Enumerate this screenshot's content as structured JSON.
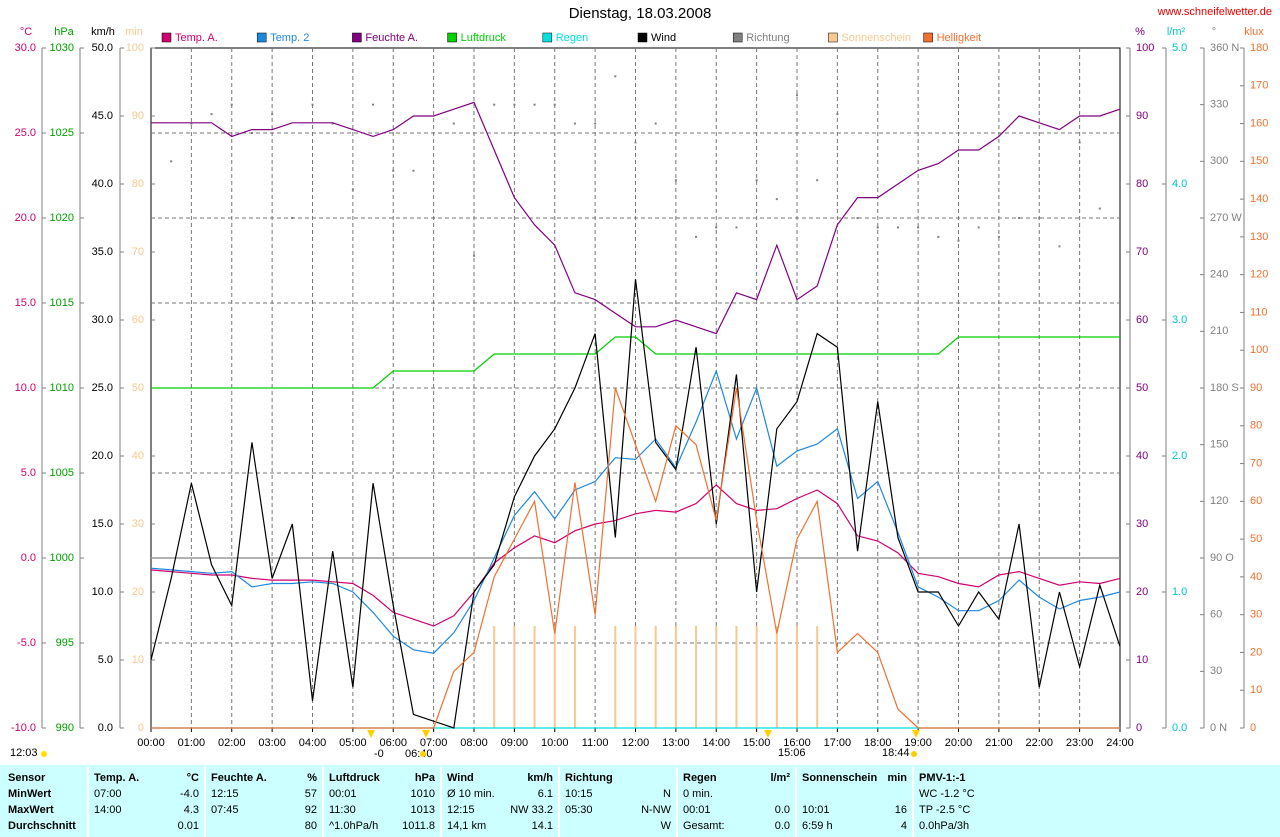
{
  "chart_data": {
    "type": "line",
    "title": "Dienstag, 18.03.2008",
    "source": "www.schneifelwetter.de",
    "xlim": [
      0,
      24
    ],
    "xticks": [
      {
        "value": 0,
        "label": "00:00"
      },
      {
        "value": 1,
        "label": "01:00"
      },
      {
        "value": 2,
        "label": "02:00"
      },
      {
        "value": 3,
        "label": "03:00"
      },
      {
        "value": 4,
        "label": "04:00"
      },
      {
        "value": 5,
        "label": "05:00"
      },
      {
        "value": 6,
        "label": "06:00"
      },
      {
        "value": 7,
        "label": "07:00"
      },
      {
        "value": 8,
        "label": "08:00"
      },
      {
        "value": 9,
        "label": "09:00"
      },
      {
        "value": 10,
        "label": "10:00"
      },
      {
        "value": 11,
        "label": "11:00"
      },
      {
        "value": 12,
        "label": "12:00"
      },
      {
        "value": 13,
        "label": "13:00"
      },
      {
        "value": 14,
        "label": "14:00"
      },
      {
        "value": 15,
        "label": "15:00"
      },
      {
        "value": 16,
        "label": "16:00"
      },
      {
        "value": 17,
        "label": "17:00"
      },
      {
        "value": 18,
        "label": "18:00"
      },
      {
        "value": 19,
        "label": "19:00"
      },
      {
        "value": 20,
        "label": "20:00"
      },
      {
        "value": 21,
        "label": "21:00"
      },
      {
        "value": 22,
        "label": "22:00"
      },
      {
        "value": 23,
        "label": "23:00"
      },
      {
        "value": 24,
        "label": "24:00"
      }
    ],
    "grid": true,
    "grid_axis": "temp",
    "axes": {
      "temp": {
        "label": "°C",
        "side": "left",
        "color": "#d0006f",
        "lim": [
          -10,
          30
        ],
        "ticks": [
          {
            "value": -10,
            "label": "-10.0"
          },
          {
            "value": -5,
            "label": "-5.0"
          },
          {
            "value": 0,
            "label": "0.0"
          },
          {
            "value": 5,
            "label": "5.0"
          },
          {
            "value": 10,
            "label": "10.0"
          },
          {
            "value": 15,
            "label": "15.0"
          },
          {
            "value": 20,
            "label": "20.0"
          },
          {
            "value": 25,
            "label": "25.0"
          },
          {
            "value": 30,
            "label": "30.0"
          }
        ]
      },
      "pressure": {
        "label": "hPa",
        "side": "left",
        "color": "#00a000",
        "lim": [
          990,
          1030
        ],
        "ticks": [
          990,
          995,
          1000,
          1005,
          1010,
          1015,
          1020,
          1025,
          1030
        ]
      },
      "wind": {
        "label": "km/h",
        "side": "left",
        "color": "#000000",
        "lim": [
          0,
          50
        ],
        "ticks": [
          {
            "value": 0,
            "label": "0.0"
          },
          {
            "value": 5,
            "label": "5.0"
          },
          {
            "value": 10,
            "label": "10.0"
          },
          {
            "value": 15,
            "label": "15.0"
          },
          {
            "value": 20,
            "label": "20.0"
          },
          {
            "value": 25,
            "label": "25.0"
          },
          {
            "value": 30,
            "label": "30.0"
          },
          {
            "value": 35,
            "label": "35.0"
          },
          {
            "value": 40,
            "label": "40.0"
          },
          {
            "value": 45,
            "label": "45.0"
          },
          {
            "value": 50,
            "label": "50.0"
          }
        ]
      },
      "sun": {
        "label": "min",
        "side": "left",
        "color": "#f8c890",
        "lim": [
          0,
          100
        ],
        "ticks": [
          0,
          10,
          20,
          30,
          40,
          50,
          60,
          70,
          80,
          90,
          100
        ]
      },
      "humidity": {
        "label": "%",
        "side": "right",
        "color": "#800080",
        "lim": [
          0,
          100
        ],
        "ticks": [
          0,
          10,
          20,
          30,
          40,
          50,
          60,
          70,
          80,
          90,
          100
        ]
      },
      "rain": {
        "label": "l/m²",
        "side": "right",
        "color": "#00c8c8",
        "lim": [
          0,
          5
        ],
        "ticks": [
          {
            "value": 0,
            "label": "0.0"
          },
          {
            "value": 1,
            "label": "1.0"
          },
          {
            "value": 2,
            "label": "2.0"
          },
          {
            "value": 3,
            "label": "3.0"
          },
          {
            "value": 4,
            "label": "4.0"
          },
          {
            "value": 5,
            "label": "5.0"
          }
        ]
      },
      "direction": {
        "label": "°",
        "side": "right",
        "color": "#808080",
        "lim": [
          0,
          360
        ],
        "ticks": [
          {
            "value": 0,
            "label": "0   N"
          },
          30,
          60,
          {
            "value": 90,
            "label": "90   O"
          },
          120,
          150,
          {
            "value": 180,
            "label": "180 S"
          },
          210,
          240,
          {
            "value": 270,
            "label": "270 W"
          },
          300,
          330,
          {
            "value": 360,
            "label": "360 N"
          }
        ]
      },
      "lux": {
        "label": "klux",
        "side": "right",
        "color": "#f07030",
        "lim": [
          0,
          180
        ],
        "ticks": [
          0,
          10,
          20,
          30,
          40,
          50,
          60,
          70,
          80,
          90,
          100,
          110,
          120,
          130,
          140,
          150,
          160,
          170,
          180
        ]
      }
    },
    "x": [
      0,
      0.5,
      1,
      1.5,
      2,
      2.5,
      3,
      3.5,
      4,
      4.5,
      5,
      5.5,
      6,
      6.5,
      7,
      7.5,
      8,
      8.5,
      9,
      9.5,
      10,
      10.5,
      11,
      11.5,
      12,
      12.5,
      13,
      13.5,
      14,
      14.5,
      15,
      15.5,
      16,
      16.5,
      17,
      17.5,
      18,
      18.5,
      19,
      19.5,
      20,
      20.5,
      21,
      21.5,
      22,
      22.5,
      23,
      23.5,
      24
    ],
    "series": [
      {
        "name": "Temp. A.",
        "color": "#d0006f",
        "axis": "temp",
        "style": "line",
        "values": [
          -0.7,
          -0.8,
          -0.9,
          -1.0,
          -1.0,
          -1.2,
          -1.3,
          -1.3,
          -1.3,
          -1.4,
          -1.5,
          -2.2,
          -3.2,
          -3.6,
          -4.0,
          -3.4,
          -2.0,
          -0.3,
          0.6,
          1.3,
          0.9,
          1.6,
          2.0,
          2.2,
          2.6,
          2.8,
          2.7,
          3.2,
          4.3,
          3.2,
          2.8,
          2.9,
          3.5,
          4.0,
          3.2,
          1.3,
          1.0,
          0.3,
          -0.9,
          -1.1,
          -1.5,
          -1.7,
          -1.0,
          -0.8,
          -1.2,
          -1.6,
          -1.4,
          -1.5,
          -1.2
        ]
      },
      {
        "name": "Temp. 2",
        "color": "#1e88e0",
        "axis": "temp",
        "style": "line",
        "values": [
          -0.6,
          -0.7,
          -0.8,
          -0.9,
          -0.8,
          -1.7,
          -1.5,
          -1.5,
          -1.4,
          -1.5,
          -2.0,
          -3.2,
          -4.6,
          -5.4,
          -5.6,
          -4.4,
          -2.5,
          0.0,
          2.5,
          3.9,
          2.3,
          4.0,
          4.5,
          5.9,
          5.8,
          7.0,
          5.3,
          8.0,
          11.0,
          7.0,
          10.0,
          5.4,
          6.3,
          6.7,
          7.6,
          3.5,
          4.5,
          1.5,
          -1.7,
          -2.3,
          -3.1,
          -3.1,
          -2.5,
          -1.3,
          -2.3,
          -3.0,
          -2.5,
          -2.3,
          -2.0
        ]
      },
      {
        "name": "Feuchte A.",
        "color": "#800080",
        "axis": "humidity",
        "style": "line",
        "values": [
          89,
          89,
          89,
          89,
          87,
          88,
          88,
          89,
          89,
          89,
          88,
          87,
          88,
          90,
          90,
          91,
          92,
          85,
          78,
          74,
          71,
          64,
          63,
          61,
          59,
          59,
          60,
          59,
          58,
          64,
          63,
          71,
          63,
          65,
          74,
          78,
          78,
          80,
          82,
          83,
          85,
          85,
          87,
          90,
          89,
          88,
          90,
          90,
          91
        ]
      },
      {
        "name": "Luftdruck",
        "color": "#00d000",
        "axis": "pressure",
        "style": "line",
        "values": [
          1010,
          1010,
          1010,
          1010,
          1010,
          1010,
          1010,
          1010,
          1010,
          1010,
          1010,
          1010,
          1011,
          1011,
          1011,
          1011,
          1011,
          1012,
          1012,
          1012,
          1012,
          1012,
          1012,
          1013,
          1013,
          1012,
          1012,
          1012,
          1012,
          1012,
          1012,
          1012,
          1012,
          1012,
          1012,
          1012,
          1012,
          1012,
          1012,
          1012,
          1013,
          1013,
          1013,
          1013,
          1013,
          1013,
          1013,
          1013,
          1013
        ]
      },
      {
        "name": "Regen",
        "color": "#00e0e0",
        "axis": "rain",
        "style": "line",
        "values": [
          0,
          0,
          0,
          0,
          0,
          0,
          0,
          0,
          0,
          0,
          0,
          0,
          0,
          0,
          0,
          0,
          0,
          0,
          0,
          0,
          0,
          0,
          0,
          0,
          0,
          0,
          0,
          0,
          0,
          0,
          0,
          0,
          0,
          0,
          0,
          0,
          0,
          0,
          0,
          0,
          0,
          0,
          0,
          0,
          0,
          0,
          0,
          0,
          0
        ]
      },
      {
        "name": "Wind",
        "color": "#000000",
        "axis": "wind",
        "style": "line",
        "values": [
          5,
          11,
          18,
          12,
          9,
          21,
          11,
          15,
          2,
          13,
          3,
          18,
          9,
          1,
          0.5,
          0,
          10,
          12,
          17,
          20,
          22,
          25,
          29,
          14,
          33,
          21,
          19,
          28,
          15,
          26,
          10,
          22,
          24,
          29,
          28,
          13,
          24,
          14,
          10,
          10,
          7.5,
          10,
          8,
          15,
          3,
          10,
          4.5,
          10.5,
          6
        ]
      },
      {
        "name": "Richtung",
        "color": "#808080",
        "axis": "direction",
        "style": "dots",
        "values": [
          290,
          300,
          320,
          325,
          330,
          315,
          325,
          270,
          330,
          320,
          285,
          330,
          295,
          295,
          270,
          320,
          250,
          330,
          330,
          330,
          330,
          320,
          320,
          345,
          310,
          320,
          290,
          260,
          265,
          265,
          290,
          280,
          335,
          290,
          325,
          270,
          265,
          265,
          265,
          260,
          258,
          265,
          260,
          270,
          270,
          255,
          310,
          275,
          275
        ]
      },
      {
        "name": "Sonnenschein",
        "color": "#f8c890",
        "axis": "sun",
        "style": "bars",
        "values": [
          0,
          0,
          0,
          0,
          0,
          0,
          0,
          0,
          0,
          0,
          0,
          0,
          0,
          0,
          0,
          0,
          0,
          15,
          15,
          15,
          15,
          15,
          0,
          15,
          15,
          15,
          15,
          15,
          15,
          15,
          15,
          15,
          15,
          15,
          0,
          0,
          0,
          0,
          0,
          0,
          0,
          0,
          0,
          0,
          0,
          0,
          0,
          0,
          0
        ]
      },
      {
        "name": "Helligkeit",
        "color": "#f07030",
        "axis": "lux",
        "style": "line",
        "values": [
          0,
          0,
          0,
          0,
          0,
          0,
          0,
          0,
          0,
          0,
          0,
          0,
          0,
          0,
          0,
          15,
          20,
          40,
          50,
          60,
          25,
          65,
          30,
          90,
          75,
          60,
          80,
          75,
          55,
          90,
          55,
          25,
          50,
          60,
          20,
          25,
          20,
          5,
          0,
          0,
          0,
          0,
          0,
          0,
          0,
          0,
          0,
          0,
          0
        ]
      }
    ],
    "annotations": [
      "12:03",
      "-0",
      "06:40",
      "15:06",
      "18:44"
    ]
  },
  "stats": {
    "row_labels": [
      "Sensor",
      "MinWert",
      "MaxWert",
      "Durchschnitt"
    ],
    "sections": [
      {
        "title": "Temp. A.",
        "unit": "°C",
        "rows": [
          {
            "time": "07:00",
            "value": "-4.0"
          },
          {
            "time": "14:00",
            "value": "4.3"
          },
          {
            "value": "0.01"
          }
        ]
      },
      {
        "title": "Feuchte A.",
        "unit": "%",
        "rows": [
          {
            "time": "12:15",
            "value": "57"
          },
          {
            "time": "07:45",
            "value": "92"
          },
          {
            "value": "80"
          }
        ]
      },
      {
        "title": "Luftdruck",
        "unit": "hPa",
        "rows": [
          {
            "time": "00:01",
            "value": "1010"
          },
          {
            "time": "11:30",
            "value": "1013"
          },
          {
            "time": "^1.0hPa/h",
            "value": "1011.8"
          }
        ]
      },
      {
        "title": "Wind",
        "unit": "km/h",
        "rows": [
          {
            "time": "Ø 10 min.",
            "value": "6.1"
          },
          {
            "time": "12:15",
            "value": "NW 33.2"
          },
          {
            "time": "14,1 km",
            "value": "14.1"
          }
        ]
      },
      {
        "title": "Richtung",
        "rows": [
          {
            "time": "10:15",
            "value": "N"
          },
          {
            "time": "05:30",
            "value": "N-NW"
          },
          {
            "value": "W"
          }
        ]
      },
      {
        "title": "Regen",
        "unit": "l/m²",
        "rows": [
          {
            "time": "0 min."
          },
          {
            "time": "00:01",
            "value": "0.0"
          },
          {
            "time": "Gesamt:",
            "value": "0.0"
          }
        ]
      },
      {
        "title": "Sonnenschein",
        "unit": "min",
        "rows": [
          {},
          {
            "time": "10:01",
            "value": "16"
          },
          {
            "time": "6:59 h",
            "value": "4"
          }
        ]
      },
      {
        "title": "PMV-1:-1",
        "rows": [
          {
            "time": "WC -1.2 °C"
          },
          {
            "time": "TP -2.5 °C"
          },
          {
            "time": "0.0hPa/3h"
          }
        ]
      }
    ]
  }
}
